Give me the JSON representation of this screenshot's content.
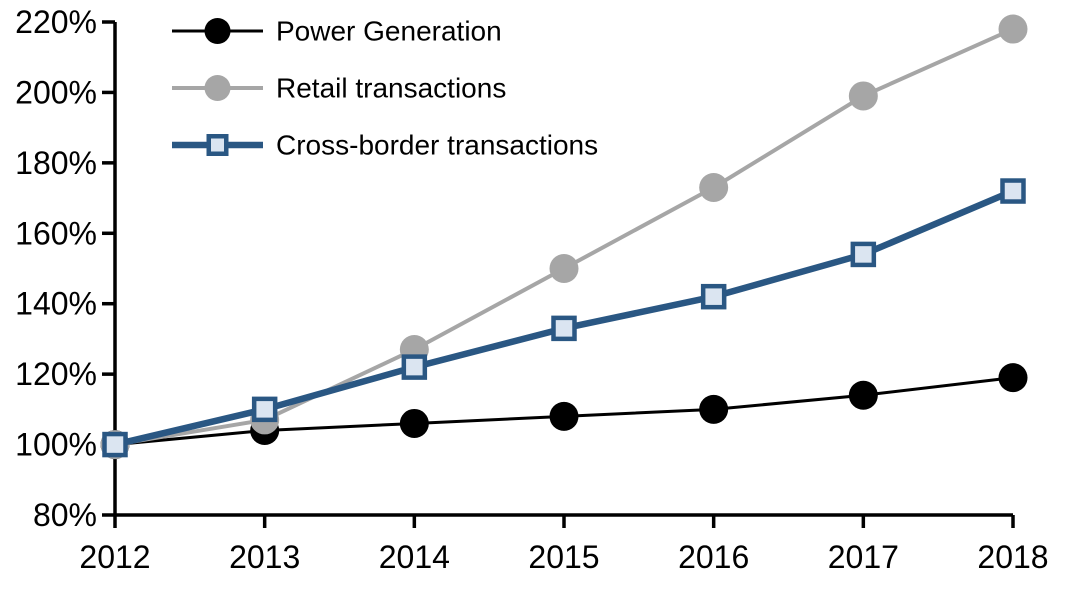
{
  "chart_data": {
    "type": "line",
    "title": "",
    "xlabel": "",
    "ylabel": "",
    "x": [
      "2012",
      "2013",
      "2014",
      "2015",
      "2016",
      "2017",
      "2018"
    ],
    "series": [
      {
        "name": "Power Generation",
        "values": [
          100,
          104,
          106,
          108,
          110,
          114,
          119
        ],
        "color": "#000000",
        "marker": "circle",
        "marker_fill": "#000000",
        "marker_stroke": "#000000",
        "line_width": 3
      },
      {
        "name": "Retail transactions",
        "values": [
          100,
          107,
          127,
          150,
          173,
          199,
          218
        ],
        "color": "#a6a6a6",
        "marker": "circle",
        "marker_fill": "#a6a6a6",
        "marker_stroke": "#a6a6a6",
        "line_width": 4
      },
      {
        "name": "Cross-border transactions",
        "values": [
          100,
          110,
          122,
          133,
          142,
          154,
          172
        ],
        "color": "#2a5783",
        "marker": "square",
        "marker_fill": "#dbe5f1",
        "marker_stroke": "#2a5783",
        "line_width": 6.5
      }
    ],
    "ylim": [
      80,
      220
    ],
    "ytick_step": 20,
    "ytick_labels": [
      "80%",
      "100%",
      "120%",
      "140%",
      "160%",
      "180%",
      "200%",
      "220%"
    ],
    "xtick_labels": [
      "2012",
      "2013",
      "2014",
      "2015",
      "2016",
      "2017",
      "2018"
    ],
    "grid": false,
    "legend_position": "top-left-inside",
    "axis_color": "#000000",
    "background": "#ffffff"
  }
}
